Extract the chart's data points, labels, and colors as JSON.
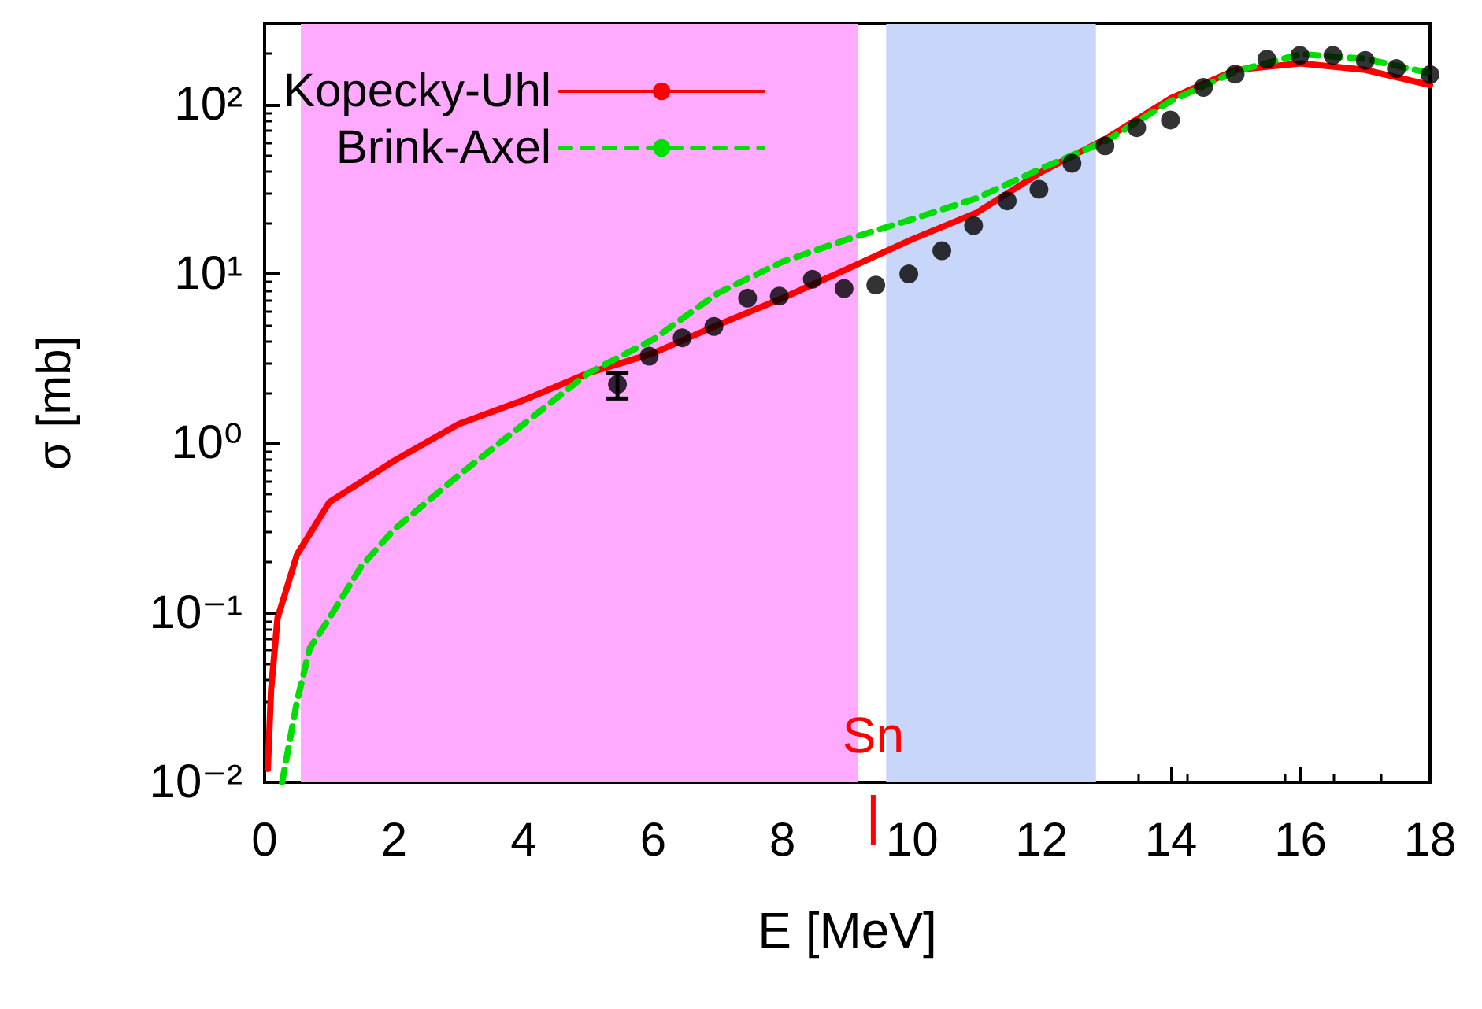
{
  "chart_data": {
    "type": "line",
    "xlabel": "E [MeV]",
    "ylabel": "σ [mb]",
    "xlim": [
      0,
      18
    ],
    "xticks": [
      0,
      2,
      4,
      6,
      8,
      10,
      12,
      14,
      16,
      18
    ],
    "ylim": [
      0.01,
      300
    ],
    "log": "y",
    "yticks": [
      {
        "value": 0.01,
        "label": "10⁻²"
      },
      {
        "value": 0.1,
        "label": "10⁻¹"
      },
      {
        "value": 1,
        "label": "10⁰"
      },
      {
        "value": 10,
        "label": "10¹"
      },
      {
        "value": 100,
        "label": "10²"
      }
    ],
    "grid": false,
    "legend": "top left",
    "series": [
      {
        "name": "Kopecky-Uhl",
        "color": "#ff0000",
        "line_style": "solid",
        "marker": "none",
        "x": [
          0.05,
          0.1,
          0.2,
          0.5,
          1,
          2,
          3,
          4,
          5,
          6,
          7,
          8,
          9,
          10,
          11,
          12,
          13,
          14,
          15,
          16,
          17,
          18
        ],
        "values": [
          0.012,
          0.035,
          0.093,
          0.22,
          0.45,
          0.79,
          1.3,
          1.8,
          2.6,
          3.4,
          5,
          7.2,
          10.7,
          16,
          23,
          40,
          63,
          109,
          160,
          175,
          160,
          130
        ]
      },
      {
        "name": "Brink-Axel",
        "color": "#00dd00",
        "line_style": "dashed",
        "marker": "none",
        "x": [
          0.27,
          0.5,
          0.7,
          1,
          1.5,
          2,
          3,
          4,
          5,
          6,
          7,
          8,
          9,
          10,
          11,
          12,
          13,
          14,
          15,
          16,
          17,
          18
        ],
        "values": [
          0.01,
          0.03,
          0.062,
          0.093,
          0.19,
          0.31,
          0.65,
          1.3,
          2.6,
          4.1,
          7.7,
          11.8,
          16,
          21,
          28,
          42,
          61,
          105,
          157,
          198,
          186,
          153
        ]
      },
      {
        "type": "scatter",
        "color": "#000000",
        "marker": "circle",
        "x": [
          5.45,
          5.94,
          6.45,
          6.94,
          7.46,
          7.95,
          8.46,
          8.95,
          9.44,
          9.95,
          10.46,
          10.95,
          11.47,
          11.96,
          12.47,
          12.98,
          13.47,
          13.99,
          14.5,
          14.99,
          15.48,
          15.99,
          16.5,
          17.0,
          17.48,
          18.0
        ],
        "values": [
          2.23,
          3.27,
          4.2,
          4.9,
          7.2,
          7.4,
          9.3,
          8.2,
          8.6,
          10,
          13.7,
          19.3,
          27,
          31.6,
          45,
          57,
          73,
          81,
          126,
          151,
          185,
          195,
          195,
          182,
          163,
          150
        ],
        "errors": [
          [
            1.84,
            2.59
          ],
          null,
          null,
          null,
          null,
          null,
          null,
          null,
          null,
          null,
          null,
          null,
          null,
          null,
          null,
          null,
          null,
          null,
          null,
          null,
          null,
          null,
          null,
          null,
          null,
          null
        ]
      }
    ],
    "bands": [
      {
        "axis": "x",
        "from": 0.56,
        "to": 9.17,
        "color": "#ffaaff"
      },
      {
        "axis": "x",
        "from": 9.6,
        "to": 12.84,
        "color": "#c8d6fa"
      }
    ],
    "ref_lines": [
      {
        "axis": "x",
        "value": 9.4,
        "label": "Sn",
        "color": "#ff0000"
      }
    ]
  }
}
